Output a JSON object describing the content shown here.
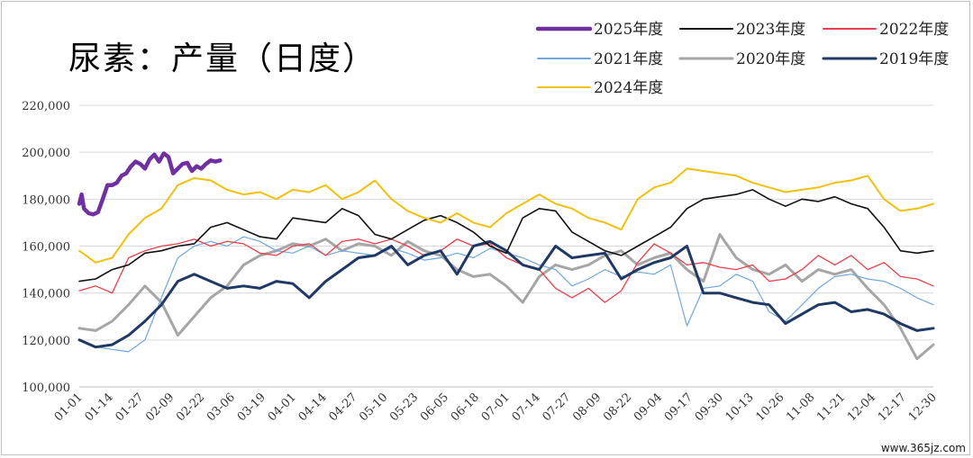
{
  "watermark": "www.365jz.com",
  "chart_data": {
    "type": "line",
    "title": "尿素：产量（日度）",
    "ylim": [
      100000,
      220000
    ],
    "yticks": [
      "100,000",
      "120,000",
      "140,000",
      "160,000",
      "180,000",
      "200,000",
      "220,000"
    ],
    "xticks": [
      "01-01",
      "01-14",
      "01-27",
      "02-09",
      "02-22",
      "03-06",
      "03-19",
      "04-01",
      "04-14",
      "04-27",
      "05-10",
      "05-23",
      "06-05",
      "06-18",
      "07-01",
      "07-14",
      "07-27",
      "08-09",
      "08-22",
      "09-04",
      "09-17",
      "09-30",
      "10-13",
      "10-26",
      "11-08",
      "11-21",
      "12-04",
      "12-17",
      "12-30"
    ],
    "x_unit": "day of year (Jan 1 = 0)",
    "grid": "horizontal",
    "legend_position": "top-right",
    "series": [
      {
        "name": "2025年度",
        "color": "#7030a0",
        "x": [
          0,
          1,
          2,
          4,
          6,
          8,
          10,
          12,
          14,
          16,
          18,
          20,
          22,
          24,
          26,
          28,
          30,
          32,
          34,
          36,
          38,
          40,
          42,
          44,
          46,
          48,
          50,
          52,
          54,
          56,
          58,
          60
        ],
        "y": [
          178000,
          182000,
          176000,
          174000,
          173500,
          174500,
          180000,
          186000,
          186000,
          187000,
          190000,
          191000,
          194000,
          196000,
          195000,
          193000,
          197000,
          199000,
          196000,
          199500,
          198000,
          191000,
          193000,
          195000,
          195500,
          192000,
          194000,
          193000,
          195000,
          196500,
          196000,
          196500
        ]
      },
      {
        "name": "2023年度",
        "color": "#111111",
        "x": [
          0,
          7,
          14,
          21,
          28,
          35,
          42,
          49,
          56,
          63,
          70,
          77,
          84,
          91,
          98,
          105,
          112,
          119,
          126,
          133,
          140,
          147,
          154,
          161,
          168,
          175,
          182,
          189,
          196,
          203,
          210,
          217,
          224,
          231,
          238,
          245,
          252,
          259,
          266,
          273,
          280,
          287,
          294,
          301,
          308,
          315,
          322,
          329,
          336,
          343,
          350,
          357,
          364
        ],
        "y": [
          145000,
          146000,
          150000,
          152000,
          157000,
          158000,
          160000,
          161000,
          168000,
          170000,
          167000,
          164000,
          163000,
          172000,
          171000,
          170000,
          176000,
          173000,
          165000,
          163000,
          167000,
          171000,
          173000,
          170000,
          166000,
          160000,
          157000,
          172000,
          176000,
          175000,
          166000,
          162000,
          158000,
          156000,
          160000,
          164000,
          168000,
          176000,
          180000,
          181000,
          182000,
          184000,
          180000,
          177000,
          180000,
          179000,
          181000,
          178000,
          176000,
          168000,
          158000,
          157000,
          158000
        ]
      },
      {
        "name": "2022年度",
        "color": "#e8404a",
        "x": [
          0,
          7,
          14,
          21,
          28,
          35,
          42,
          49,
          56,
          63,
          70,
          77,
          84,
          91,
          98,
          105,
          112,
          119,
          126,
          133,
          140,
          147,
          154,
          161,
          168,
          175,
          182,
          189,
          196,
          203,
          210,
          217,
          224,
          231,
          238,
          245,
          252,
          259,
          266,
          273,
          280,
          287,
          294,
          301,
          308,
          315,
          322,
          329,
          336,
          343,
          350,
          357,
          364
        ],
        "y": [
          141000,
          143000,
          140000,
          155000,
          158000,
          160000,
          161000,
          163000,
          160000,
          162000,
          161000,
          157000,
          156000,
          160000,
          161000,
          156000,
          162000,
          163000,
          161000,
          163000,
          160000,
          156000,
          158000,
          163000,
          160000,
          161000,
          155000,
          152000,
          150000,
          142000,
          138000,
          142000,
          136000,
          141000,
          153000,
          161000,
          157000,
          152000,
          153000,
          151000,
          150000,
          152000,
          145000,
          146000,
          150000,
          156000,
          152000,
          156000,
          150000,
          153000,
          147000,
          146000,
          143000
        ]
      },
      {
        "name": "2021年度",
        "color": "#6fa8dc",
        "x": [
          0,
          7,
          14,
          21,
          28,
          35,
          42,
          49,
          56,
          63,
          70,
          77,
          84,
          91,
          98,
          105,
          112,
          119,
          126,
          133,
          140,
          147,
          154,
          161,
          168,
          175,
          182,
          189,
          196,
          203,
          210,
          217,
          224,
          231,
          238,
          245,
          252,
          259,
          266,
          273,
          280,
          287,
          294,
          301,
          308,
          315,
          322,
          329,
          336,
          343,
          350,
          357,
          364
        ],
        "y": [
          120000,
          117000,
          116000,
          115000,
          120000,
          138000,
          155000,
          160000,
          162000,
          160000,
          164000,
          162000,
          158000,
          157000,
          160000,
          156000,
          158000,
          157000,
          156000,
          159000,
          157000,
          154000,
          155000,
          157000,
          155000,
          159000,
          157000,
          155000,
          152000,
          150000,
          143000,
          146000,
          150000,
          147000,
          149000,
          148000,
          152000,
          126000,
          142000,
          143000,
          148000,
          145000,
          132000,
          128000,
          135000,
          142000,
          147000,
          148000,
          146000,
          145000,
          142000,
          138000,
          135000
        ]
      },
      {
        "name": "2020年度",
        "color": "#a6a6a6",
        "x": [
          0,
          7,
          14,
          21,
          28,
          35,
          42,
          49,
          56,
          63,
          70,
          77,
          84,
          91,
          98,
          105,
          112,
          119,
          126,
          133,
          140,
          147,
          154,
          161,
          168,
          175,
          182,
          189,
          196,
          203,
          210,
          217,
          224,
          231,
          238,
          245,
          252,
          259,
          266,
          273,
          280,
          287,
          294,
          301,
          308,
          315,
          322,
          329,
          336,
          343,
          350,
          357,
          364
        ],
        "y": [
          125000,
          124000,
          128000,
          135000,
          143000,
          136000,
          122000,
          130000,
          138000,
          143000,
          152000,
          156000,
          158000,
          161000,
          160000,
          163000,
          158000,
          161000,
          160000,
          156000,
          162000,
          158000,
          156000,
          150000,
          147000,
          148000,
          143000,
          136000,
          147000,
          152000,
          150000,
          152000,
          156000,
          158000,
          152000,
          155000,
          157000,
          150000,
          145000,
          165000,
          155000,
          150000,
          148000,
          152000,
          145000,
          150000,
          148000,
          150000,
          142000,
          135000,
          125000,
          112000,
          118000
        ]
      },
      {
        "name": "2019年度",
        "color": "#1f3864",
        "x": [
          0,
          7,
          14,
          21,
          28,
          35,
          42,
          49,
          56,
          63,
          70,
          77,
          84,
          91,
          98,
          105,
          112,
          119,
          126,
          133,
          140,
          147,
          154,
          161,
          168,
          175,
          182,
          189,
          196,
          203,
          210,
          217,
          224,
          231,
          238,
          245,
          252,
          259,
          266,
          273,
          280,
          287,
          294,
          301,
          308,
          315,
          322,
          329,
          336,
          343,
          350,
          357,
          364
        ],
        "y": [
          120000,
          117000,
          118000,
          122000,
          128000,
          135000,
          145000,
          148000,
          145000,
          142000,
          143000,
          142000,
          145000,
          144000,
          138000,
          145000,
          150000,
          155000,
          156000,
          160000,
          152000,
          156000,
          158000,
          148000,
          160000,
          162000,
          158000,
          152000,
          150000,
          160000,
          155000,
          156000,
          157000,
          146000,
          150000,
          153000,
          155000,
          160000,
          140000,
          140000,
          138000,
          136000,
          135000,
          127000,
          131000,
          135000,
          136000,
          132000,
          133000,
          131000,
          127000,
          124000,
          125000
        ]
      },
      {
        "name": "2024年度",
        "color": "#f2c00f",
        "x": [
          0,
          7,
          14,
          21,
          28,
          35,
          42,
          49,
          56,
          63,
          70,
          77,
          84,
          91,
          98,
          105,
          112,
          119,
          126,
          133,
          140,
          147,
          154,
          161,
          168,
          175,
          182,
          189,
          196,
          203,
          210,
          217,
          224,
          231,
          238,
          245,
          252,
          259,
          266,
          273,
          280,
          287,
          294,
          301,
          308,
          315,
          322,
          329,
          336,
          343,
          350,
          357,
          364
        ],
        "y": [
          158000,
          153000,
          155000,
          165000,
          172000,
          176000,
          186000,
          189000,
          188000,
          184000,
          182000,
          183000,
          180000,
          184000,
          183000,
          186000,
          180000,
          183000,
          188000,
          180000,
          175000,
          172000,
          170000,
          174000,
          170000,
          168000,
          174000,
          178000,
          182000,
          178000,
          176000,
          172000,
          170000,
          167000,
          180000,
          185000,
          187000,
          193000,
          192000,
          191000,
          190000,
          187000,
          185000,
          183000,
          184000,
          185000,
          187000,
          188000,
          190000,
          180000,
          175000,
          176000,
          178000
        ]
      }
    ]
  }
}
